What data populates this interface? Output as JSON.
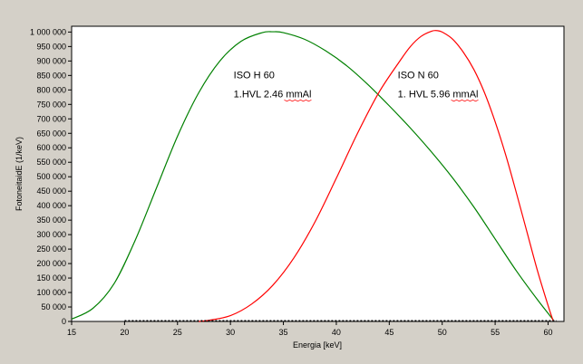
{
  "chart_data": {
    "type": "line",
    "xlabel": "Energia [keV]",
    "ylabel": "FotoneitaidE (1/keV)",
    "xlim": [
      15,
      61.5
    ],
    "ylim": [
      0,
      1020000
    ],
    "xticks": [
      15,
      20,
      25,
      30,
      35,
      40,
      45,
      50,
      55,
      60
    ],
    "yticks": [
      0,
      50000,
      100000,
      150000,
      200000,
      250000,
      300000,
      350000,
      400000,
      450000,
      500000,
      550000,
      600000,
      650000,
      700000,
      750000,
      800000,
      850000,
      900000,
      950000,
      1000000
    ],
    "ytick_labels": [
      "0",
      "50 000",
      "100 000",
      "150 000",
      "200 000",
      "250 000",
      "300 000",
      "350 000",
      "400 000",
      "450 000",
      "500 000",
      "550 000",
      "600 000",
      "650 000",
      "700 000",
      "750 000",
      "800 000",
      "850 000",
      "900 000",
      "950 000",
      "1 000 000"
    ],
    "grid": false,
    "legend": "none",
    "background": "#ffffff",
    "series": [
      {
        "color": "#008000",
        "x": [
          15,
          17,
          19,
          21,
          23,
          25,
          27,
          29,
          31,
          33,
          34,
          35,
          37,
          39,
          41,
          43,
          45,
          47,
          49,
          51,
          53,
          55,
          57,
          59,
          60.5
        ],
        "y": [
          8000,
          45000,
          130000,
          280000,
          460000,
          640000,
          790000,
          900000,
          968000,
          998000,
          1001000,
          998000,
          975000,
          935000,
          883000,
          818000,
          745000,
          668000,
          585000,
          495000,
          395000,
          285000,
          175000,
          75000,
          5000
        ]
      },
      {
        "color": "#ff0000",
        "x": [
          27,
          28,
          30,
          32,
          34,
          36,
          38,
          40,
          42,
          44,
          46,
          47,
          48,
          49,
          49.5,
          50,
          51,
          52,
          53,
          54,
          55,
          56,
          57,
          58,
          59,
          60,
          60.5
        ],
        "y": [
          0,
          4000,
          20000,
          60000,
          125000,
          220000,
          345000,
          495000,
          650000,
          790000,
          900000,
          950000,
          985000,
          1003000,
          1005000,
          1000000,
          975000,
          930000,
          870000,
          790000,
          690000,
          575000,
          445000,
          310000,
          175000,
          55000,
          0
        ]
      }
    ],
    "annotations": [
      {
        "line1": "ISO H 60",
        "line2": "1.HVL 2.46 mmAl",
        "x": 30.3,
        "y": 840000,
        "y2": 775000
      },
      {
        "line1": "ISO N 60",
        "line2": "1. HVL 5.96 mmAl",
        "x": 45.8,
        "y": 840000,
        "y2": 775000
      }
    ]
  }
}
